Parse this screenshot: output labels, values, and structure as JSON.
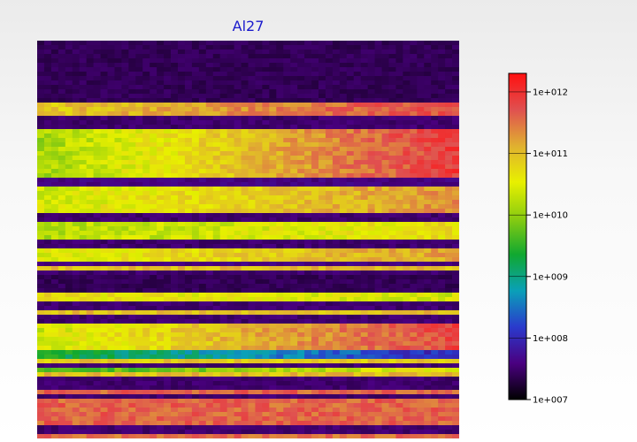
{
  "chart_data": {
    "type": "heatmap",
    "title": "Al27",
    "xlabel": "",
    "ylabel": "",
    "scale": "log",
    "colorbar": {
      "min": 10000000.0,
      "max": 2000000000000.0,
      "tick_values": [
        10000000.0,
        100000000.0,
        1000000000.0,
        10000000000.0,
        100000000000.0,
        1000000000000.0
      ],
      "tick_labels": [
        "1e+007",
        "1e+008",
        "1e+009",
        "1e+010",
        "1e+011",
        "1e+012"
      ],
      "colors": [
        "#000000",
        "#4a0080",
        "#2a3acc",
        "#0aa0b8",
        "#10a830",
        "#8acc10",
        "#e8f000",
        "#e0b030",
        "#e05050",
        "#ff1010"
      ]
    },
    "grid": {
      "columns": 60,
      "rows": 90
    },
    "row_bands": [
      {
        "rows": [
          0,
          14
        ],
        "pattern": "background",
        "level": 7.4
      },
      {
        "rows": [
          14,
          17
        ],
        "pattern": "ramp",
        "from": 10.9,
        "to": 11.8
      },
      {
        "rows": [
          17,
          20
        ],
        "pattern": "background",
        "level": 7.5
      },
      {
        "rows": [
          20,
          31
        ],
        "pattern": "ramp",
        "from": 10.1,
        "to": 11.9
      },
      {
        "rows": [
          31,
          33
        ],
        "pattern": "background",
        "level": 7.6
      },
      {
        "rows": [
          33,
          39
        ],
        "pattern": "ramp",
        "from": 10.4,
        "to": 11.3
      },
      {
        "rows": [
          39,
          41
        ],
        "pattern": "background",
        "level": 7.5
      },
      {
        "rows": [
          41,
          45
        ],
        "pattern": "ramp",
        "from": 10.2,
        "to": 10.7
      },
      {
        "rows": [
          45,
          47
        ],
        "pattern": "background",
        "level": 7.5
      },
      {
        "rows": [
          47,
          50
        ],
        "pattern": "ramp",
        "from": 10.5,
        "to": 11.2
      },
      {
        "rows": [
          50,
          51
        ],
        "pattern": "background",
        "level": 7.6
      },
      {
        "rows": [
          51,
          52
        ],
        "pattern": "flat",
        "level": 11.0
      },
      {
        "rows": [
          52,
          53
        ],
        "pattern": "background",
        "level": 7.5
      },
      {
        "rows": [
          53,
          57
        ],
        "pattern": "background",
        "level": 7.4
      },
      {
        "rows": [
          57,
          59
        ],
        "pattern": "ramp",
        "from": 10.7,
        "to": 10.4
      },
      {
        "rows": [
          59,
          61
        ],
        "pattern": "background",
        "level": 7.5
      },
      {
        "rows": [
          61,
          62
        ],
        "pattern": "flat",
        "level": 11.0
      },
      {
        "rows": [
          62,
          64
        ],
        "pattern": "background",
        "level": 7.5
      },
      {
        "rows": [
          64,
          70
        ],
        "pattern": "ramp",
        "from": 10.4,
        "to": 11.8
      },
      {
        "rows": [
          70,
          72
        ],
        "pattern": "ramp",
        "from": 9.4,
        "to": 8.0
      },
      {
        "rows": [
          72,
          73
        ],
        "pattern": "flat",
        "level": 10.9
      },
      {
        "rows": [
          73,
          74
        ],
        "pattern": "background",
        "level": 7.5
      },
      {
        "rows": [
          74,
          75
        ],
        "pattern": "ramp",
        "from": 9.5,
        "to": 10.6
      },
      {
        "rows": [
          75,
          76
        ],
        "pattern": "flat",
        "level": 11.0
      },
      {
        "rows": [
          76,
          79
        ],
        "pattern": "background",
        "level": 7.5
      },
      {
        "rows": [
          79,
          80
        ],
        "pattern": "flat",
        "level": 11.6
      },
      {
        "rows": [
          80,
          81
        ],
        "pattern": "background",
        "level": 7.5
      },
      {
        "rows": [
          81,
          87
        ],
        "pattern": "ramp",
        "from": 11.6,
        "to": 11.6
      },
      {
        "rows": [
          87,
          89
        ],
        "pattern": "background",
        "level": 7.5
      },
      {
        "rows": [
          89,
          90
        ],
        "pattern": "flat",
        "level": 11.5
      }
    ]
  }
}
